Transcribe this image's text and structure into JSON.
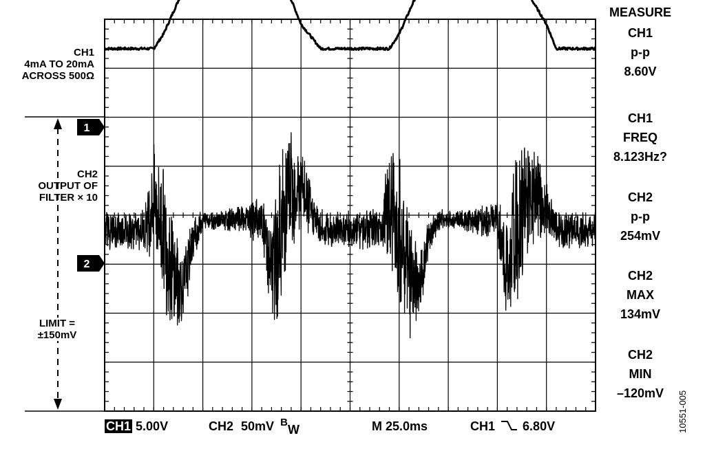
{
  "chart_data": {
    "type": "line",
    "title": "",
    "xlabel": "",
    "ylabel": "",
    "grid": true,
    "time_per_div_ms": 25.0,
    "x_range_ms": [
      0,
      250
    ],
    "y_divisions": 8,
    "series": [
      {
        "name": "CH1",
        "volts_per_div": 5.0,
        "x_ms": [
          0,
          25,
          30,
          40,
          50,
          60,
          70,
          85,
          90,
          100,
          110,
          125,
          130,
          145,
          150,
          160,
          170,
          185,
          190,
          200,
          210,
          225,
          230,
          250
        ],
        "y_div": [
          3.4,
          3.4,
          3.7,
          4.6,
          5.1,
          5.1,
          5.1,
          5.1,
          4.9,
          3.9,
          3.4,
          3.4,
          3.4,
          3.4,
          3.7,
          4.6,
          5.1,
          5.1,
          5.1,
          5.1,
          4.9,
          3.9,
          3.4,
          3.4
        ]
      },
      {
        "name": "CH2",
        "volts_per_div": 0.05,
        "x_ms": [
          0,
          20,
          25,
          30,
          35,
          40,
          45,
          50,
          60,
          80,
          85,
          90,
          95,
          100,
          105,
          110,
          120,
          140,
          145,
          150,
          155,
          160,
          165,
          170,
          180,
          200,
          205,
          210,
          215,
          220,
          225,
          230,
          250
        ],
        "center_div": [
          -0.3,
          -0.3,
          0.3,
          -0.3,
          -1.2,
          -1.5,
          -0.5,
          -0.1,
          -0.1,
          -0.1,
          -1.2,
          -0.3,
          0.5,
          0.5,
          0.1,
          -0.3,
          -0.3,
          -0.3,
          0.3,
          -0.3,
          -1.2,
          -1.5,
          -0.5,
          -0.1,
          -0.1,
          -0.1,
          -1.2,
          -0.3,
          0.5,
          0.5,
          0.1,
          -0.3,
          -0.3
        ],
        "noise_div": [
          0.45,
          0.45,
          1.3,
          1.6,
          1.4,
          0.8,
          0.5,
          0.25,
          0.2,
          0.5,
          1.3,
          1.8,
          1.6,
          1.0,
          0.6,
          0.45,
          0.45,
          0.45,
          1.3,
          1.6,
          1.4,
          0.8,
          0.5,
          0.25,
          0.2,
          0.5,
          1.3,
          1.8,
          1.6,
          1.0,
          0.6,
          0.45,
          0.45
        ]
      }
    ]
  },
  "labels": {
    "ch1_line1": "CH1",
    "ch1_line2": "4mA TO 20mA",
    "ch1_line3": "ACROSS 500Ω",
    "ch2_line1": "CH2",
    "ch2_line2": "OUTPUT OF",
    "ch2_line3": "FILTER × 10",
    "limit_line1": "LIMIT =",
    "limit_line2": "±150mV",
    "marker1": "1",
    "marker2": "2"
  },
  "measure": {
    "heading": "MEASURE",
    "items": [
      {
        "ch": "CH1",
        "param": "p-p",
        "value": "8.60V"
      },
      {
        "ch": "CH1",
        "param": "FREQ",
        "value": "8.123Hz?"
      },
      {
        "ch": "CH2",
        "param": "p-p",
        "value": "254mV"
      },
      {
        "ch": "CH2",
        "param": "MAX",
        "value": "134mV"
      },
      {
        "ch": "CH2",
        "param": "MIN",
        "value": "–120mV"
      }
    ]
  },
  "status": {
    "ch1_tag": "CH1",
    "ch1_scale": "5.00V",
    "ch2_tag": "CH2",
    "ch2_scale": "50mV",
    "bw_b": "B",
    "bw_w": "W",
    "timebase": "M 25.0ms",
    "trigger_ch": "CH1",
    "trigger_level": "6.80V"
  },
  "figure_id": "10551-005"
}
